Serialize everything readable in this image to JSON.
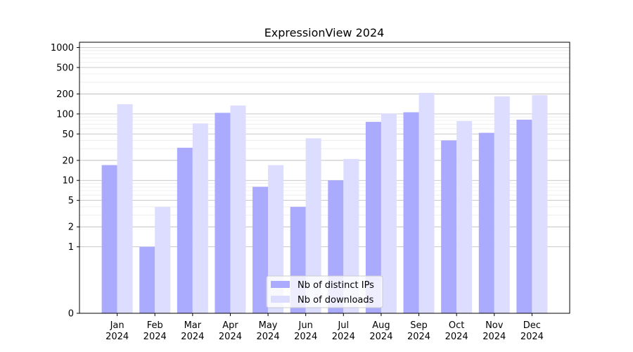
{
  "chart_data": {
    "type": "bar",
    "title": "ExpressionView 2024",
    "xlabel": "",
    "ylabel": "",
    "yscale": "symlog",
    "ylim": [
      0,
      1200
    ],
    "yticks": [
      0,
      1,
      2,
      5,
      10,
      20,
      50,
      100,
      200,
      500,
      1000
    ],
    "ytick_labels": [
      "0",
      "1",
      "2",
      "5",
      "10",
      "20",
      "50",
      "100",
      "200",
      "500",
      "1000"
    ],
    "categories": [
      [
        "Jan",
        "2024"
      ],
      [
        "Feb",
        "2024"
      ],
      [
        "Mar",
        "2024"
      ],
      [
        "Apr",
        "2024"
      ],
      [
        "May",
        "2024"
      ],
      [
        "Jun",
        "2024"
      ],
      [
        "Jul",
        "2024"
      ],
      [
        "Aug",
        "2024"
      ],
      [
        "Sep",
        "2024"
      ],
      [
        "Oct",
        "2024"
      ],
      [
        "Nov",
        "2024"
      ],
      [
        "Dec",
        "2024"
      ]
    ],
    "series": [
      {
        "name": "Nb of distinct IPs",
        "color": "#aaaaff",
        "values": [
          17,
          1,
          31,
          104,
          8,
          4,
          10,
          76,
          106,
          40,
          52,
          82
        ]
      },
      {
        "name": "Nb of downloads",
        "color": "#ddddff",
        "values": [
          140,
          4,
          72,
          134,
          17,
          43,
          21,
          102,
          208,
          78,
          184,
          192
        ]
      }
    ],
    "grid": true,
    "legend_position": "bottom-center"
  }
}
